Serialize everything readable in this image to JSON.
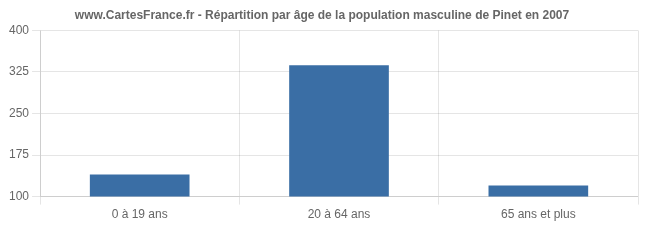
{
  "chart_data": {
    "type": "bar",
    "title": "www.CartesFrance.fr - Répartition par âge de la population masculine de Pinet en 2007",
    "categories": [
      "0 à 19 ans",
      "20 à 64 ans",
      "65 ans et plus"
    ],
    "values": [
      140,
      337,
      120
    ],
    "color": "#3A6EA5",
    "ylim": [
      100,
      400
    ],
    "yticks": [
      100,
      175,
      250,
      325,
      400
    ],
    "grid": true
  }
}
